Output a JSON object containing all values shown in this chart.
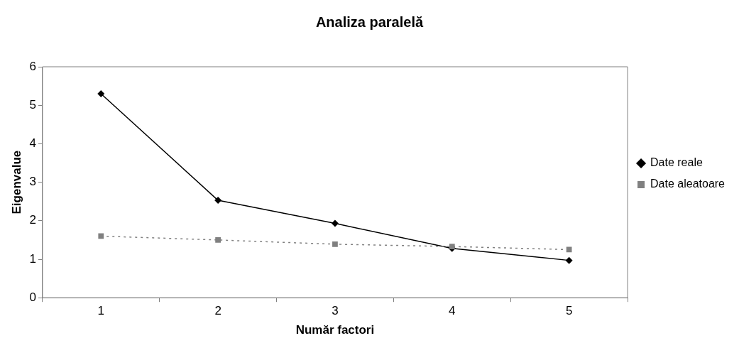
{
  "chart_data": {
    "type": "line",
    "title": "Analiza paralelă",
    "xlabel": "Număr factori",
    "ylabel": "Eigenvalue",
    "categories": [
      "1",
      "2",
      "3",
      "4",
      "5"
    ],
    "series": [
      {
        "name": "Date reale",
        "color": "#000000",
        "values": [
          5.3,
          2.53,
          1.93,
          1.28,
          0.97
        ],
        "marker": "diamond",
        "line_style": "solid"
      },
      {
        "name": "Date aleatoare",
        "color": "#808080",
        "values": [
          1.6,
          1.5,
          1.39,
          1.33,
          1.25
        ],
        "marker": "square",
        "line_style": "dotted"
      }
    ],
    "ylim": [
      0,
      6
    ],
    "yticks": [
      0,
      1,
      2,
      3,
      4,
      5,
      6
    ],
    "grid": false,
    "legend": "right"
  }
}
